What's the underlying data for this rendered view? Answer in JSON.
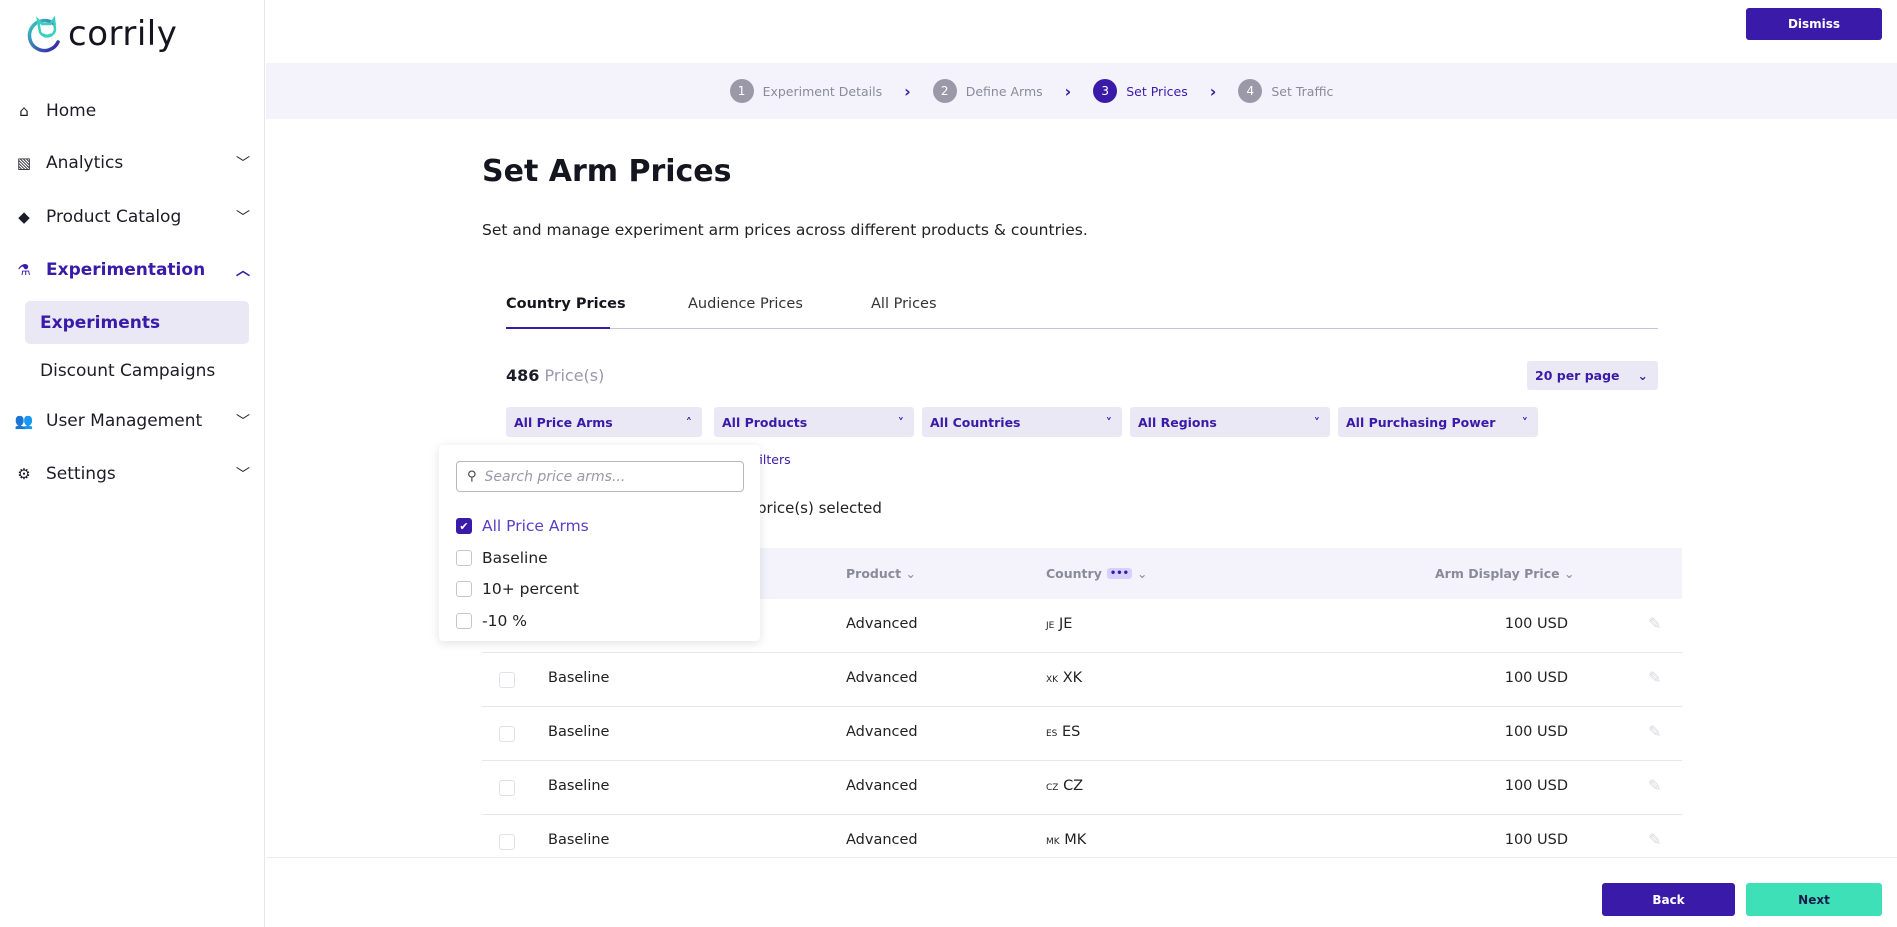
{
  "brand": {
    "name": "corrily"
  },
  "sidebar": {
    "items": [
      {
        "label": "Home",
        "icon": "home-icon"
      },
      {
        "label": "Analytics",
        "icon": "analytics-icon"
      },
      {
        "label": "Product Catalog",
        "icon": "tag-icon"
      },
      {
        "label": "Experimentation",
        "icon": "flask-icon"
      },
      {
        "label": "Experiments"
      },
      {
        "label": "Discount Campaigns"
      },
      {
        "label": "User Management",
        "icon": "users-icon"
      },
      {
        "label": "Settings",
        "icon": "user-settings-icon"
      }
    ]
  },
  "header": {
    "dismiss": "Dismiss"
  },
  "stepper": {
    "steps": [
      {
        "num": "1",
        "label": "Experiment Details"
      },
      {
        "num": "2",
        "label": "Define Arms"
      },
      {
        "num": "3",
        "label": "Set Prices"
      },
      {
        "num": "4",
        "label": "Set Traffic"
      }
    ]
  },
  "main": {
    "title": "Set Arm Prices",
    "subtitle": "Set and manage experiment arm prices across different products & countries.",
    "tabs": [
      "Country Prices",
      "Audience Prices",
      "All Prices"
    ],
    "count": "486",
    "count_label": "Price(s)",
    "per_page": "20 per page",
    "filters": [
      "All Price Arms",
      "All Products",
      "All Countries",
      "All Regions",
      "All Purchasing Power"
    ],
    "filters_link": "filters",
    "selected_text": "price(s) selected"
  },
  "dropdown": {
    "placeholder": "Search price arms...",
    "options": [
      "All Price Arms",
      "Baseline",
      "10+ percent",
      "-10 %"
    ]
  },
  "table": {
    "headers": [
      "Product",
      "Country",
      "Arm Display Price"
    ],
    "rows": [
      {
        "arm": "Baseline",
        "product": "Advanced",
        "code": "JE",
        "country": "JE",
        "price": "100 USD"
      },
      {
        "arm": "Baseline",
        "product": "Advanced",
        "code": "XK",
        "country": "XK",
        "price": "100 USD"
      },
      {
        "arm": "Baseline",
        "product": "Advanced",
        "code": "ES",
        "country": "ES",
        "price": "100 USD"
      },
      {
        "arm": "Baseline",
        "product": "Advanced",
        "code": "CZ",
        "country": "CZ",
        "price": "100 USD"
      },
      {
        "arm": "Baseline",
        "product": "Advanced",
        "code": "MK",
        "country": "MK",
        "price": "100 USD"
      }
    ]
  },
  "footer": {
    "back": "Back",
    "next": "Next"
  }
}
